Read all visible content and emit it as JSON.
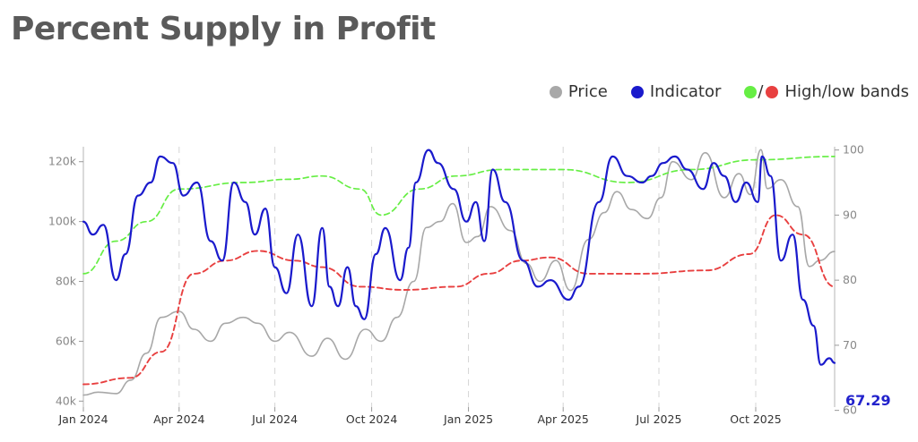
{
  "title": "Percent Supply in Profit",
  "legend": {
    "price": {
      "label": "Price",
      "color": "#a8a8a8"
    },
    "indicator": {
      "label": "Indicator",
      "color": "#1a1acc"
    },
    "bands": {
      "label": "High/low bands",
      "high_color": "#66ee44",
      "low_color": "#e84040"
    }
  },
  "chart_data": {
    "type": "line",
    "title": "Percent Supply in Profit",
    "x_range": [
      "2024-01-01",
      "2025-12-15"
    ],
    "x_ticks": [
      {
        "date": "2024-01-01",
        "label": "Jan 2024"
      },
      {
        "date": "2024-04-01",
        "label": "Apr 2024"
      },
      {
        "date": "2024-07-01",
        "label": "Jul 2024"
      },
      {
        "date": "2024-10-01",
        "label": "Oct 2024"
      },
      {
        "date": "2025-01-01",
        "label": "Jan 2025"
      },
      {
        "date": "2025-04-01",
        "label": "Apr 2025"
      },
      {
        "date": "2025-07-01",
        "label": "Jul 2025"
      },
      {
        "date": "2025-10-01",
        "label": "Oct 2025"
      }
    ],
    "y_left": {
      "range": [
        38000,
        125000
      ],
      "ticks": [
        40000,
        60000,
        80000,
        100000,
        120000
      ],
      "tick_labels": [
        "40k",
        "60k",
        "80k",
        "100k",
        "120k"
      ],
      "axis": "Price"
    },
    "y_right": {
      "range": [
        60.5,
        100.5
      ],
      "ticks": [
        60,
        70,
        80,
        90,
        100
      ],
      "tick_labels": [
        "60",
        "70",
        "80",
        "90",
        "100"
      ],
      "axis": "Indicator"
    },
    "grid": "vertical dashed at x ticks",
    "last_value_label": "67.29",
    "series": [
      {
        "name": "Price",
        "axis": "left",
        "style": "solid",
        "color": "#a8a8a8",
        "points": [
          [
            "2024-01-01",
            42000
          ],
          [
            "2024-01-15",
            43000
          ],
          [
            "2024-02-01",
            42500
          ],
          [
            "2024-02-15",
            47000
          ],
          [
            "2024-03-01",
            56000
          ],
          [
            "2024-03-15",
            68000
          ],
          [
            "2024-04-01",
            70000
          ],
          [
            "2024-04-15",
            64000
          ],
          [
            "2024-05-01",
            60000
          ],
          [
            "2024-05-15",
            66000
          ],
          [
            "2024-06-01",
            68000
          ],
          [
            "2024-06-15",
            66000
          ],
          [
            "2024-07-01",
            60000
          ],
          [
            "2024-07-15",
            63000
          ],
          [
            "2024-08-05",
            55000
          ],
          [
            "2024-08-20",
            61000
          ],
          [
            "2024-09-06",
            54000
          ],
          [
            "2024-09-25",
            64000
          ],
          [
            "2024-10-10",
            60000
          ],
          [
            "2024-10-25",
            68000
          ],
          [
            "2024-11-10",
            80000
          ],
          [
            "2024-11-22",
            98000
          ],
          [
            "2024-12-05",
            100000
          ],
          [
            "2024-12-17",
            106000
          ],
          [
            "2024-12-30",
            93000
          ],
          [
            "2025-01-10",
            95000
          ],
          [
            "2025-01-22",
            105000
          ],
          [
            "2025-02-10",
            97000
          ],
          [
            "2025-02-25",
            86000
          ],
          [
            "2025-03-10",
            80000
          ],
          [
            "2025-03-25",
            87000
          ],
          [
            "2025-04-08",
            77000
          ],
          [
            "2025-04-25",
            94000
          ],
          [
            "2025-05-10",
            103000
          ],
          [
            "2025-05-22",
            110000
          ],
          [
            "2025-06-05",
            104000
          ],
          [
            "2025-06-20",
            101000
          ],
          [
            "2025-07-03",
            108000
          ],
          [
            "2025-07-14",
            120000
          ],
          [
            "2025-08-01",
            114000
          ],
          [
            "2025-08-14",
            123000
          ],
          [
            "2025-09-01",
            108000
          ],
          [
            "2025-09-15",
            116000
          ],
          [
            "2025-09-26",
            109000
          ],
          [
            "2025-10-06",
            124000
          ],
          [
            "2025-10-12",
            111000
          ],
          [
            "2025-10-25",
            114000
          ],
          [
            "2025-11-10",
            105000
          ],
          [
            "2025-11-21",
            85000
          ],
          [
            "2025-12-01",
            87000
          ],
          [
            "2025-12-15",
            90000
          ]
        ]
      },
      {
        "name": "Indicator",
        "axis": "right",
        "style": "solid",
        "color": "#1a1acc",
        "points": [
          [
            "2024-01-01",
            89
          ],
          [
            "2024-01-10",
            87
          ],
          [
            "2024-01-20",
            88.5
          ],
          [
            "2024-02-01",
            80
          ],
          [
            "2024-02-10",
            84
          ],
          [
            "2024-02-22",
            93
          ],
          [
            "2024-03-05",
            95
          ],
          [
            "2024-03-14",
            99
          ],
          [
            "2024-03-26",
            98
          ],
          [
            "2024-04-05",
            93
          ],
          [
            "2024-04-18",
            95
          ],
          [
            "2024-05-01",
            86
          ],
          [
            "2024-05-12",
            83
          ],
          [
            "2024-05-23",
            95
          ],
          [
            "2024-06-03",
            92
          ],
          [
            "2024-06-12",
            87
          ],
          [
            "2024-06-22",
            91
          ],
          [
            "2024-07-01",
            82
          ],
          [
            "2024-07-12",
            78
          ],
          [
            "2024-07-23",
            87
          ],
          [
            "2024-08-05",
            76
          ],
          [
            "2024-08-15",
            88
          ],
          [
            "2024-08-22",
            79
          ],
          [
            "2024-08-30",
            76
          ],
          [
            "2024-09-08",
            82
          ],
          [
            "2024-09-16",
            76
          ],
          [
            "2024-09-24",
            74
          ],
          [
            "2024-10-05",
            84
          ],
          [
            "2024-10-14",
            88
          ],
          [
            "2024-10-28",
            80
          ],
          [
            "2024-11-05",
            85
          ],
          [
            "2024-11-12",
            95
          ],
          [
            "2024-11-24",
            100
          ],
          [
            "2024-12-03",
            98
          ],
          [
            "2024-12-18",
            94
          ],
          [
            "2024-12-30",
            89
          ],
          [
            "2025-01-08",
            92
          ],
          [
            "2025-01-16",
            86
          ],
          [
            "2025-01-24",
            97
          ],
          [
            "2025-02-05",
            92
          ],
          [
            "2025-02-22",
            83
          ],
          [
            "2025-03-08",
            79
          ],
          [
            "2025-03-20",
            80
          ],
          [
            "2025-04-06",
            77
          ],
          [
            "2025-04-16",
            79
          ],
          [
            "2025-05-05",
            92
          ],
          [
            "2025-05-18",
            99
          ],
          [
            "2025-06-01",
            96
          ],
          [
            "2025-06-15",
            95
          ],
          [
            "2025-06-24",
            96
          ],
          [
            "2025-07-05",
            98
          ],
          [
            "2025-07-16",
            99
          ],
          [
            "2025-07-28",
            97
          ],
          [
            "2025-08-12",
            94
          ],
          [
            "2025-08-22",
            98
          ],
          [
            "2025-09-01",
            96
          ],
          [
            "2025-09-12",
            92
          ],
          [
            "2025-09-22",
            95
          ],
          [
            "2025-10-03",
            92
          ],
          [
            "2025-10-07",
            99
          ],
          [
            "2025-10-15",
            96
          ],
          [
            "2025-10-25",
            83
          ],
          [
            "2025-11-05",
            87
          ],
          [
            "2025-11-15",
            77
          ],
          [
            "2025-11-25",
            73
          ],
          [
            "2025-12-02",
            67
          ],
          [
            "2025-12-10",
            68
          ],
          [
            "2025-12-15",
            67.29
          ]
        ]
      },
      {
        "name": "High band",
        "axis": "right",
        "style": "dashed",
        "color": "#66ee44",
        "points": [
          [
            "2024-01-01",
            81
          ],
          [
            "2024-02-01",
            86
          ],
          [
            "2024-03-01",
            89
          ],
          [
            "2024-04-01",
            94
          ],
          [
            "2024-06-01",
            95
          ],
          [
            "2024-07-15",
            95.5
          ],
          [
            "2024-08-15",
            96
          ],
          [
            "2024-09-20",
            94
          ],
          [
            "2024-10-10",
            90
          ],
          [
            "2024-11-15",
            94
          ],
          [
            "2024-12-20",
            96
          ],
          [
            "2025-02-01",
            97
          ],
          [
            "2025-04-01",
            97
          ],
          [
            "2025-06-01",
            95
          ],
          [
            "2025-08-01",
            97
          ],
          [
            "2025-10-01",
            98.5
          ],
          [
            "2025-12-15",
            99
          ]
        ]
      },
      {
        "name": "Low band",
        "axis": "right",
        "style": "dashed",
        "color": "#e84040",
        "points": [
          [
            "2024-01-01",
            64
          ],
          [
            "2024-02-15",
            65
          ],
          [
            "2024-03-15",
            69
          ],
          [
            "2024-04-15",
            81
          ],
          [
            "2024-05-15",
            83
          ],
          [
            "2024-06-15",
            84.5
          ],
          [
            "2024-07-20",
            83
          ],
          [
            "2024-08-15",
            82
          ],
          [
            "2024-09-20",
            79
          ],
          [
            "2024-11-01",
            78.5
          ],
          [
            "2024-12-20",
            79
          ],
          [
            "2025-01-20",
            81
          ],
          [
            "2025-02-20",
            83
          ],
          [
            "2025-03-20",
            83.5
          ],
          [
            "2025-04-25",
            81
          ],
          [
            "2025-06-15",
            81
          ],
          [
            "2025-08-15",
            81.5
          ],
          [
            "2025-09-25",
            84
          ],
          [
            "2025-10-20",
            90
          ],
          [
            "2025-11-15",
            87
          ],
          [
            "2025-12-15",
            79
          ]
        ]
      }
    ]
  }
}
